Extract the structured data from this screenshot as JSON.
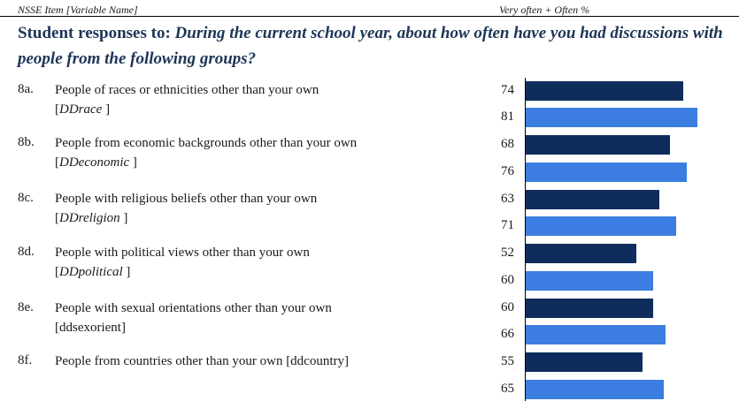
{
  "header": {
    "left": "NSSE Item [Variable Name]",
    "right": "Very often + Often %"
  },
  "question": {
    "lead": "Student responses to:",
    "text": "During the current school year, about how often have you had discussions with people from the following groups?"
  },
  "colors": {
    "series_dark": "#0f2d5c",
    "series_light": "#3b7de0"
  },
  "chart_data": {
    "type": "bar",
    "orientation": "horizontal",
    "categories": [
      "8a",
      "8b",
      "8c",
      "8d",
      "8e",
      "8f"
    ],
    "series": [
      {
        "values": [
          74,
          68,
          63,
          52,
          60,
          55
        ]
      },
      {
        "values": [
          81,
          76,
          71,
          60,
          66,
          65
        ]
      }
    ],
    "xlim": [
      0,
      100
    ]
  },
  "items": [
    {
      "code": "8a.",
      "label": "People of races or ethnicities other than your own",
      "var_open": "[",
      "var": "DDrace",
      "var_close": " ]"
    },
    {
      "code": "8b.",
      "label": "People from economic backgrounds other than your own",
      "var_open": "[",
      "var": "DDeconomic",
      "var_close": " ]"
    },
    {
      "code": "8c.",
      "label": "People with religious beliefs other than your own",
      "var_open": "[",
      "var": "DDreligion",
      "var_close": " ]"
    },
    {
      "code": "8d.",
      "label": "People with political views other than your own",
      "var_open": "[",
      "var": "DDpolitical",
      "var_close": " ]"
    },
    {
      "code": "8e.",
      "label": "People with sexual orientations other than your own",
      "var_open": "",
      "var": "",
      "var_close": "[ddsexorient]"
    },
    {
      "code": "8f.",
      "label": "People from countries other than your own [ddcountry]",
      "var_open": "",
      "var": "",
      "var_close": ""
    }
  ]
}
